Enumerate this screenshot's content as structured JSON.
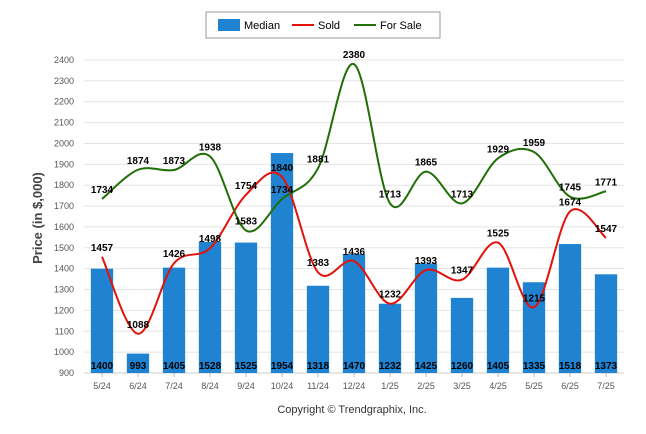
{
  "chart_data": {
    "type": "bar",
    "categories": [
      "5/24",
      "6/24",
      "7/24",
      "8/24",
      "9/24",
      "10/24",
      "11/24",
      "12/24",
      "1/25",
      "2/25",
      "3/25",
      "4/25",
      "5/25",
      "6/25",
      "7/25"
    ],
    "series": [
      {
        "name": "Median",
        "kind": "bar",
        "color": "#1f83d2",
        "values": [
          1400,
          993,
          1405,
          1528,
          1525,
          1954,
          1318,
          1470,
          1232,
          1425,
          1260,
          1405,
          1335,
          1518,
          1373
        ]
      },
      {
        "name": "Sold",
        "kind": "line",
        "color": "#e3120b",
        "values": [
          1457,
          1088,
          1426,
          1498,
          1754,
          1840,
          1383,
          1436,
          1232,
          1393,
          1347,
          1525,
          1215,
          1674,
          1547
        ]
      },
      {
        "name": "For Sale",
        "kind": "line",
        "color": "#1f6e06",
        "values": [
          1734,
          1874,
          1873,
          1938,
          1583,
          1734,
          1881,
          2380,
          1713,
          1865,
          1713,
          1929,
          1959,
          1745,
          1771
        ]
      }
    ],
    "ylabel": "Price (in $,000)",
    "xlabel": "",
    "ylim": [
      900,
      2400
    ],
    "yticks": [
      900,
      1000,
      1100,
      1200,
      1300,
      1400,
      1500,
      1600,
      1700,
      1800,
      1900,
      2000,
      2100,
      2200,
      2300,
      2400
    ],
    "grid": true,
    "legend": "top-center"
  },
  "footer": "Copyright © Trendgraphix, Inc."
}
